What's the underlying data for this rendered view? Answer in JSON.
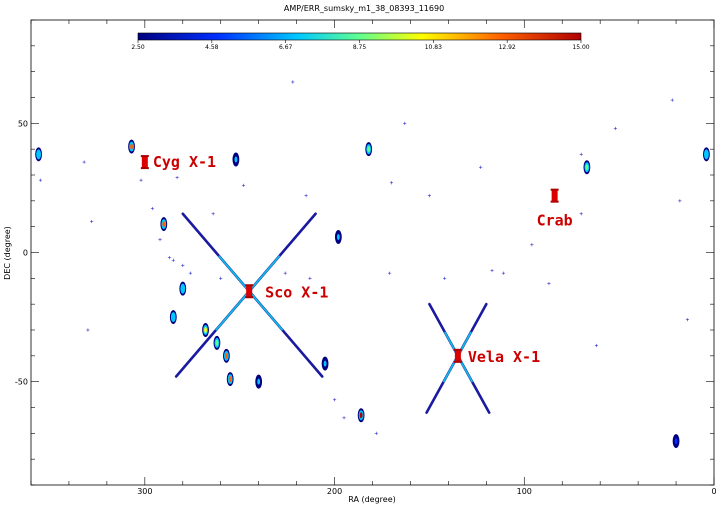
{
  "chart_data": {
    "type": "scatter",
    "title": "AMP/ERR_sumsky_m1_38_08393_11690",
    "xlabel": "RA (degree)",
    "ylabel": "DEC (degree)",
    "xlim": [
      360,
      0
    ],
    "ylim": [
      -90,
      90
    ],
    "x_ticks": [
      300,
      200,
      100,
      0
    ],
    "y_ticks": [
      50,
      0,
      -50
    ],
    "colorbar": {
      "ticks": [
        "2.50",
        "4.58",
        "6.67",
        "8.75",
        "10.83",
        "12.92",
        "15.00"
      ],
      "colors": [
        "#000080",
        "#0030ff",
        "#00c8ff",
        "#60ff90",
        "#ffff00",
        "#ff6000",
        "#b00000"
      ]
    },
    "sources": [
      {
        "name": "Cyg X-1",
        "ra": 300,
        "dec": 35
      },
      {
        "name": "Crab",
        "ra": 84,
        "dec": 22
      },
      {
        "name": "Sco X-1",
        "ra": 245,
        "dec": -15
      },
      {
        "name": "Vela X-1",
        "ra": 135,
        "dec": -40
      }
    ],
    "blobs": [
      {
        "ra": 307,
        "dec": 41,
        "level": 0.8
      },
      {
        "ra": 252,
        "dec": 36,
        "level": 0.3
      },
      {
        "ra": 182,
        "dec": 40,
        "level": 0.45
      },
      {
        "ra": 67,
        "dec": 33,
        "level": 0.55
      },
      {
        "ra": 290,
        "dec": 11,
        "level": 0.75
      },
      {
        "ra": 280,
        "dec": -14,
        "level": 0.4
      },
      {
        "ra": 285,
        "dec": -25,
        "level": 0.35
      },
      {
        "ra": 268,
        "dec": -30,
        "level": 0.6
      },
      {
        "ra": 262,
        "dec": -35,
        "level": 0.5
      },
      {
        "ra": 257,
        "dec": -40,
        "level": 0.8
      },
      {
        "ra": 255,
        "dec": -49,
        "level": 0.9
      },
      {
        "ra": 205,
        "dec": -43,
        "level": 0.3
      },
      {
        "ra": 186,
        "dec": -63,
        "level": 0.95
      },
      {
        "ra": 198,
        "dec": 6,
        "level": 0.25
      },
      {
        "ra": 240,
        "dec": -50,
        "level": 0.3
      },
      {
        "ra": 20,
        "dec": -73,
        "level": 0.2
      },
      {
        "ra": 356,
        "dec": 38,
        "level": 0.35
      },
      {
        "ra": 4,
        "dec": 38,
        "level": 0.35
      }
    ],
    "crosses": [
      {
        "ra": 222,
        "dec": 66
      },
      {
        "ra": 332,
        "dec": 35
      },
      {
        "ra": 283,
        "dec": 29
      },
      {
        "ra": 248,
        "dec": 26
      },
      {
        "ra": 215,
        "dec": 22
      },
      {
        "ra": 170,
        "dec": 27
      },
      {
        "ra": 150,
        "dec": 22
      },
      {
        "ra": 123,
        "dec": 33
      },
      {
        "ra": 96,
        "dec": 3
      },
      {
        "ra": 70,
        "dec": 15
      },
      {
        "ra": 22,
        "dec": 59
      },
      {
        "ra": 18,
        "dec": 20
      },
      {
        "ra": 14,
        "dec": -26
      },
      {
        "ra": 355,
        "dec": 28
      },
      {
        "ra": 328,
        "dec": 12
      },
      {
        "ra": 330,
        "dec": -30
      },
      {
        "ra": 292,
        "dec": 5
      },
      {
        "ra": 287,
        "dec": -2
      },
      {
        "ra": 280,
        "dec": -5
      },
      {
        "ra": 226,
        "dec": -8
      },
      {
        "ra": 213,
        "dec": -10
      },
      {
        "ra": 171,
        "dec": -8
      },
      {
        "ra": 142,
        "dec": -10
      },
      {
        "ra": 117,
        "dec": -7
      },
      {
        "ra": 111,
        "dec": -8
      },
      {
        "ra": 87,
        "dec": -12
      },
      {
        "ra": 302,
        "dec": 28
      },
      {
        "ra": 296,
        "dec": 17
      },
      {
        "ra": 285,
        "dec": -3
      },
      {
        "ra": 276,
        "dec": -8
      },
      {
        "ra": 264,
        "dec": 15
      },
      {
        "ra": 163,
        "dec": 50
      },
      {
        "ra": 70,
        "dec": 38
      },
      {
        "ra": 62,
        "dec": -36
      },
      {
        "ra": 52,
        "dec": 48
      },
      {
        "ra": 260,
        "dec": -10
      },
      {
        "ra": 200,
        "dec": -57
      },
      {
        "ra": 178,
        "dec": -70
      },
      {
        "ra": 195,
        "dec": -64
      }
    ]
  }
}
